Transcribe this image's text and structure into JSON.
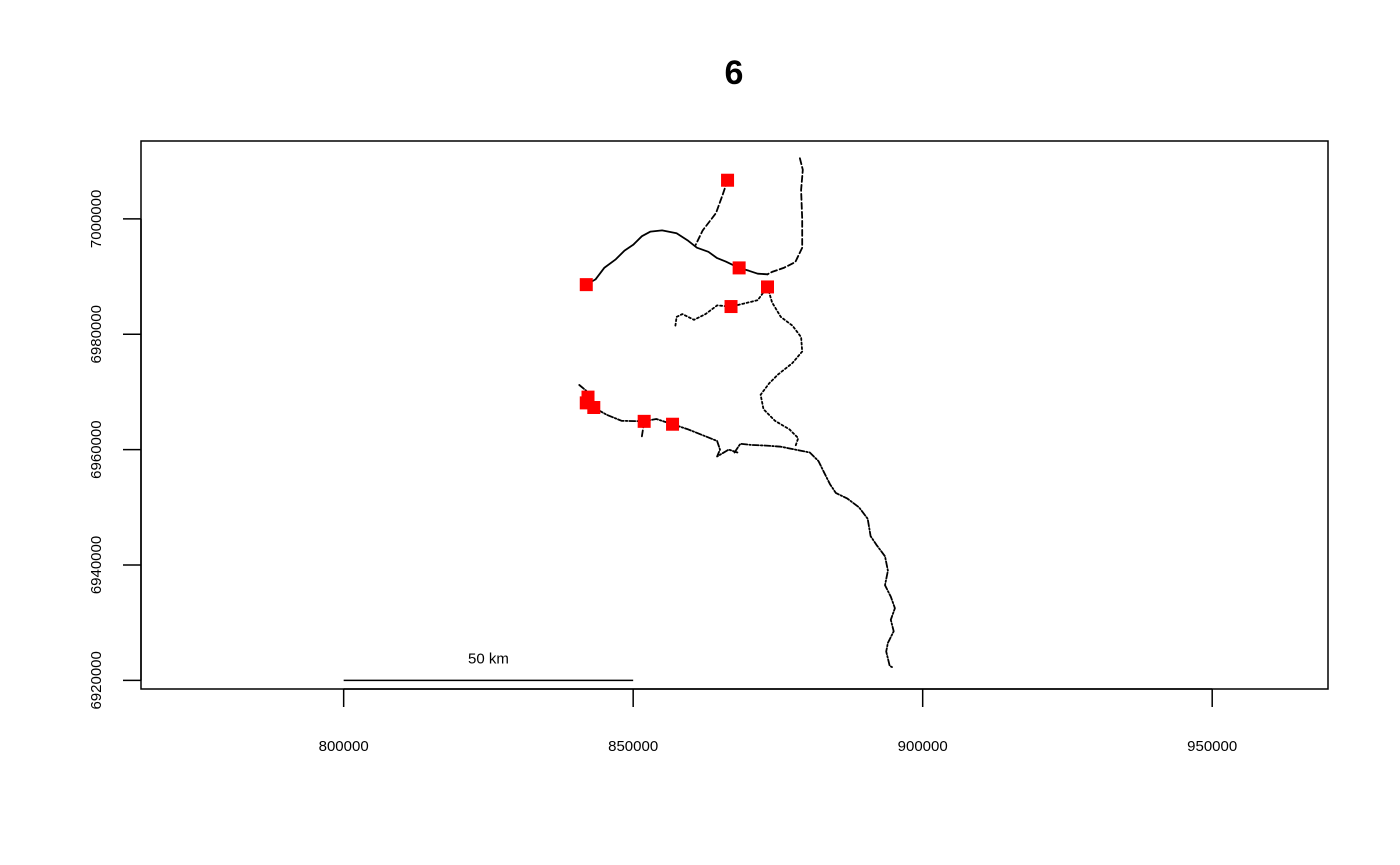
{
  "chart_data": {
    "type": "scatter",
    "title": "6",
    "xlabel": "",
    "ylabel": "",
    "xlim": [
      765000,
      970000
    ],
    "ylim": [
      6918500,
      7013500
    ],
    "x_ticks": [
      800000,
      850000,
      900000,
      950000
    ],
    "x_tick_labels": [
      "800000",
      "850000",
      "900000",
      "950000"
    ],
    "y_ticks": [
      6920000,
      6940000,
      6960000,
      6980000,
      7000000
    ],
    "y_tick_labels": [
      "6920000",
      "6940000",
      "6960000",
      "6980000",
      "7000000"
    ],
    "grid": false,
    "legend": "none",
    "point_color": "#ff0000",
    "line_color": "#000000",
    "points": [
      {
        "x": 866300,
        "y": 7006700
      },
      {
        "x": 868300,
        "y": 6991500
      },
      {
        "x": 873200,
        "y": 6988200
      },
      {
        "x": 841900,
        "y": 6988600
      },
      {
        "x": 866900,
        "y": 6984800
      },
      {
        "x": 842200,
        "y": 6969100
      },
      {
        "x": 841900,
        "y": 6968100
      },
      {
        "x": 843200,
        "y": 6967300
      },
      {
        "x": 851900,
        "y": 6964900
      },
      {
        "x": 856800,
        "y": 6964400
      }
    ],
    "rivers": [
      {
        "style": "solid",
        "points": [
          [
            841900,
            6988600
          ],
          [
            843500,
            6989500
          ],
          [
            845000,
            6991500
          ],
          [
            847000,
            6993000
          ],
          [
            848500,
            6994500
          ],
          [
            850000,
            6995500
          ],
          [
            851500,
            6997000
          ],
          [
            853000,
            6997800
          ],
          [
            855000,
            6998000
          ],
          [
            857500,
            6997500
          ],
          [
            859500,
            6996200
          ],
          [
            861000,
            6995000
          ],
          [
            863000,
            6994300
          ],
          [
            864500,
            6993200
          ],
          [
            866000,
            6992600
          ],
          [
            868300,
            6991500
          ],
          [
            870000,
            6991000
          ],
          [
            871500,
            6990500
          ],
          [
            873200,
            6990400
          ]
        ]
      },
      {
        "style": "dashed",
        "points": [
          [
            866300,
            7006700
          ],
          [
            865400,
            7004000
          ],
          [
            864300,
            7001000
          ],
          [
            862000,
            6998000
          ],
          [
            860800,
            6995500
          ]
        ]
      },
      {
        "style": "dashed",
        "points": [
          [
            878800,
            7010500
          ],
          [
            879300,
            7008500
          ],
          [
            879000,
            7005000
          ],
          [
            879200,
            7000000
          ],
          [
            879200,
            6995000
          ],
          [
            878000,
            6992500
          ],
          [
            876000,
            6991500
          ],
          [
            874000,
            6990800
          ],
          [
            873200,
            6990400
          ]
        ]
      },
      {
        "style": "dotted",
        "points": [
          [
            857300,
            6981500
          ],
          [
            857500,
            6983000
          ],
          [
            858500,
            6983500
          ],
          [
            860500,
            6982500
          ],
          [
            862500,
            6983500
          ],
          [
            864500,
            6985000
          ],
          [
            866900,
            6984800
          ],
          [
            869000,
            6985300
          ],
          [
            871500,
            6985900
          ],
          [
            873200,
            6988200
          ]
        ]
      },
      {
        "style": "dotted",
        "points": [
          [
            873200,
            6988200
          ],
          [
            874000,
            6985500
          ],
          [
            875500,
            6983000
          ],
          [
            877500,
            6981500
          ],
          [
            879000,
            6979500
          ],
          [
            879200,
            6977000
          ],
          [
            877500,
            6975000
          ],
          [
            875000,
            6973000
          ],
          [
            873500,
            6971500
          ],
          [
            872000,
            6969500
          ],
          [
            872500,
            6967000
          ],
          [
            874500,
            6965000
          ],
          [
            877000,
            6963500
          ],
          [
            878500,
            6962000
          ],
          [
            878000,
            6960500
          ]
        ]
      },
      {
        "style": "dashdot",
        "points": [
          [
            840700,
            6971200
          ],
          [
            841900,
            6970200
          ],
          [
            842200,
            6969100
          ],
          [
            841900,
            6968100
          ],
          [
            843200,
            6967300
          ],
          [
            845500,
            6966000
          ],
          [
            848000,
            6965000
          ],
          [
            851900,
            6964900
          ],
          [
            854000,
            6965300
          ],
          [
            856800,
            6964400
          ],
          [
            859500,
            6963500
          ],
          [
            862000,
            6962500
          ],
          [
            864500,
            6961500
          ],
          [
            865000,
            6960000
          ],
          [
            864500,
            6958800
          ],
          [
            866500,
            6960000
          ],
          [
            868000,
            6959500
          ]
        ]
      },
      {
        "style": "dashed",
        "points": [
          [
            851500,
            6962300
          ],
          [
            851900,
            6964900
          ]
        ]
      },
      {
        "style": "dashdot",
        "points": [
          [
            867500,
            6959500
          ],
          [
            868500,
            6961000
          ],
          [
            870500,
            6960800
          ],
          [
            873000,
            6960700
          ],
          [
            875500,
            6960500
          ],
          [
            878000,
            6960000
          ],
          [
            880500,
            6959500
          ],
          [
            882000,
            6958000
          ],
          [
            883000,
            6956000
          ],
          [
            884000,
            6954000
          ],
          [
            885000,
            6952500
          ],
          [
            887000,
            6951500
          ],
          [
            889000,
            6950000
          ],
          [
            890500,
            6948000
          ],
          [
            891000,
            6945000
          ],
          [
            892000,
            6943500
          ],
          [
            893500,
            6941500
          ],
          [
            894000,
            6939000
          ],
          [
            893500,
            6936500
          ],
          [
            894500,
            6934500
          ],
          [
            895200,
            6932500
          ],
          [
            894500,
            6930500
          ],
          [
            895000,
            6928500
          ],
          [
            894000,
            6926500
          ],
          [
            893700,
            6925000
          ],
          [
            894300,
            6922500
          ],
          [
            894700,
            6922300
          ]
        ]
      }
    ],
    "annotations": [
      {
        "text": "50 km",
        "type": "scalebar",
        "x_start": 800000,
        "x_end": 850000,
        "y": 6920000
      }
    ]
  }
}
